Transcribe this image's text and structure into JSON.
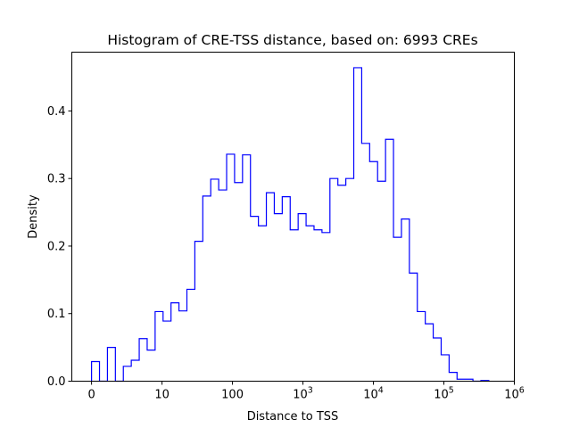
{
  "chart_data": {
    "type": "bar",
    "histtype": "step",
    "title": "Histogram of CRE-TSS distance, based on: 6993 CREs",
    "xlabel": "Distance to TSS",
    "ylabel": "Density",
    "xscale": "symlog",
    "linthresh": 10,
    "xlim": [
      -2.8,
      1000000
    ],
    "ylim": [
      0,
      0.487
    ],
    "bin_range": [
      0,
      434500
    ],
    "bin_count": 50,
    "values": [
      0.029,
      0,
      0.05,
      0,
      0.022,
      0.031,
      0.063,
      0.046,
      0.103,
      0.089,
      0.116,
      0.104,
      0.136,
      0.207,
      0.274,
      0.299,
      0.283,
      0.336,
      0.294,
      0.335,
      0.244,
      0.23,
      0.279,
      0.248,
      0.273,
      0.224,
      0.248,
      0.23,
      0.224,
      0.22,
      0.3,
      0.29,
      0.3,
      0.464,
      0.352,
      0.325,
      0.296,
      0.358,
      0.213,
      0.24,
      0.16,
      0.103,
      0.085,
      0.064,
      0.039,
      0.013,
      0.003,
      0.003,
      0,
      0.001
    ],
    "color": "#0000ff",
    "grid": false,
    "xticks": [
      {
        "value": 0,
        "base": "0",
        "exp": ""
      },
      {
        "value": 10,
        "base": "10",
        "exp": ""
      },
      {
        "value": 100,
        "base": "100",
        "exp": ""
      },
      {
        "value": 1000,
        "base": "10",
        "exp": "3"
      },
      {
        "value": 10000,
        "base": "10",
        "exp": "4"
      },
      {
        "value": 100000,
        "base": "10",
        "exp": "5"
      },
      {
        "value": 1000000,
        "base": "10",
        "exp": "6"
      }
    ],
    "yticks": [
      {
        "value": 0.0,
        "label": "0.0"
      },
      {
        "value": 0.1,
        "label": "0.1"
      },
      {
        "value": 0.2,
        "label": "0.2"
      },
      {
        "value": 0.3,
        "label": "0.3"
      },
      {
        "value": 0.4,
        "label": "0.4"
      }
    ]
  }
}
